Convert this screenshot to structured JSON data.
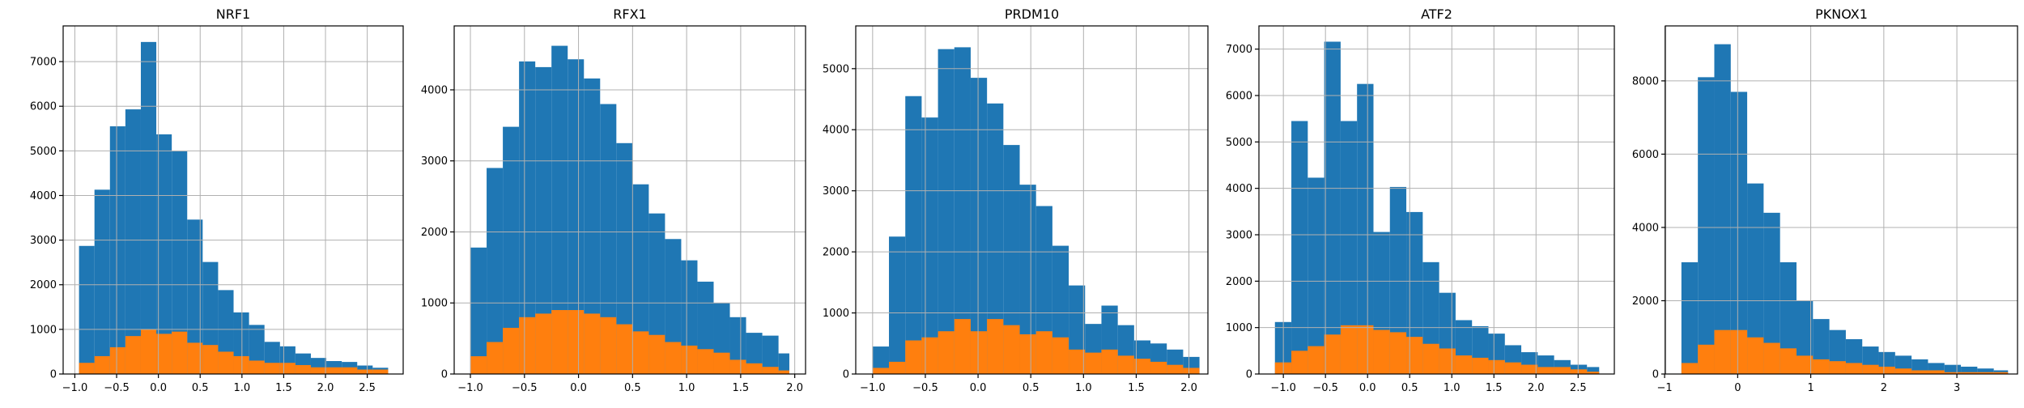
{
  "colors": {
    "series_a": "#1f77b4",
    "series_b": "#ff7f0e",
    "grid": "#b0b0b0"
  },
  "chart_data": [
    {
      "type": "bar",
      "title": "NRF1",
      "xlabel": "",
      "ylabel": "",
      "grid": true,
      "xlim": [
        -1.14,
        2.93
      ],
      "ylim": [
        0,
        7800
      ],
      "xticks": [
        -1.0,
        -0.5,
        0.0,
        0.5,
        1.0,
        1.5,
        2.0,
        2.5
      ],
      "xtick_labels": [
        "−1.0",
        "−0.5",
        "0.0",
        "0.5",
        "1.0",
        "1.5",
        "2.0",
        "2.5"
      ],
      "yticks": [
        0,
        1000,
        2000,
        3000,
        4000,
        5000,
        6000,
        7000
      ],
      "ytick_labels": [
        "0",
        "1000",
        "2000",
        "3000",
        "4000",
        "5000",
        "6000",
        "7000"
      ],
      "bin_edges": [
        -0.95,
        -0.765,
        -0.58,
        -0.395,
        -0.21,
        -0.025,
        0.16,
        0.345,
        0.53,
        0.715,
        0.9,
        1.085,
        1.27,
        1.455,
        1.64,
        1.825,
        2.01,
        2.195,
        2.38,
        2.565,
        2.75
      ],
      "series": [
        {
          "color": "#1f77b4",
          "values": [
            2870,
            4130,
            5550,
            5930,
            7440,
            5370,
            4990,
            3460,
            2510,
            1880,
            1380,
            1100,
            720,
            620,
            460,
            360,
            290,
            270,
            190,
            140
          ]
        },
        {
          "color": "#ff7f0e",
          "values": [
            250,
            400,
            600,
            850,
            1000,
            900,
            950,
            700,
            650,
            500,
            400,
            300,
            250,
            250,
            200,
            150,
            150,
            150,
            100,
            100
          ]
        }
      ]
    },
    {
      "type": "bar",
      "title": "RFX1",
      "xlabel": "",
      "ylabel": "",
      "grid": true,
      "xlim": [
        -1.15,
        2.1
      ],
      "ylim": [
        0,
        4900
      ],
      "xticks": [
        -1.0,
        -0.5,
        0.0,
        0.5,
        1.0,
        1.5,
        2.0
      ],
      "xtick_labels": [
        "−1.0",
        "−0.5",
        "0.0",
        "0.5",
        "1.0",
        "1.5",
        "2.0"
      ],
      "yticks": [
        0,
        1000,
        2000,
        3000,
        4000
      ],
      "ytick_labels": [
        "0",
        "1000",
        "2000",
        "3000",
        "4000"
      ],
      "bin_edges": [
        -1.0,
        -0.85,
        -0.7,
        -0.55,
        -0.4,
        -0.25,
        -0.1,
        0.05,
        0.2,
        0.35,
        0.5,
        0.65,
        0.8,
        0.95,
        1.1,
        1.25,
        1.4,
        1.55,
        1.7,
        1.85,
        1.95
      ],
      "series": [
        {
          "color": "#1f77b4",
          "values": [
            1780,
            2900,
            3480,
            4400,
            4320,
            4620,
            4430,
            4160,
            3800,
            3250,
            2670,
            2260,
            1900,
            1600,
            1300,
            1000,
            800,
            580,
            540,
            290
          ]
        },
        {
          "color": "#ff7f0e",
          "values": [
            250,
            450,
            650,
            800,
            850,
            900,
            900,
            850,
            800,
            700,
            600,
            550,
            450,
            400,
            350,
            300,
            200,
            150,
            100,
            50
          ]
        }
      ]
    },
    {
      "type": "bar",
      "title": "PRDM10",
      "xlabel": "",
      "ylabel": "",
      "grid": true,
      "xlim": [
        -1.16,
        2.18
      ],
      "ylim": [
        0,
        5700
      ],
      "xticks": [
        -1.0,
        -0.5,
        0.0,
        0.5,
        1.0,
        1.5,
        2.0
      ],
      "xtick_labels": [
        "−1.0",
        "−0.5",
        "0.0",
        "0.5",
        "1.0",
        "1.5",
        "2.0"
      ],
      "yticks": [
        0,
        1000,
        2000,
        3000,
        4000,
        5000
      ],
      "ytick_labels": [
        "0",
        "1000",
        "2000",
        "3000",
        "4000",
        "5000"
      ],
      "bin_edges": [
        -1.0,
        -0.845,
        -0.69,
        -0.535,
        -0.38,
        -0.225,
        -0.07,
        0.085,
        0.24,
        0.395,
        0.55,
        0.705,
        0.86,
        1.015,
        1.17,
        1.325,
        1.48,
        1.635,
        1.79,
        1.945,
        2.1
      ],
      "series": [
        {
          "color": "#1f77b4",
          "values": [
            450,
            2250,
            4550,
            4200,
            5320,
            5350,
            4850,
            4430,
            3750,
            3100,
            2750,
            2100,
            1450,
            820,
            1120,
            800,
            550,
            500,
            400,
            280
          ]
        },
        {
          "color": "#ff7f0e",
          "values": [
            100,
            200,
            550,
            600,
            700,
            900,
            700,
            900,
            800,
            650,
            700,
            600,
            400,
            350,
            400,
            300,
            250,
            200,
            150,
            100
          ]
        }
      ]
    },
    {
      "type": "bar",
      "title": "ATF2",
      "xlabel": "",
      "ylabel": "",
      "grid": true,
      "xlim": [
        -1.29,
        2.93
      ],
      "ylim": [
        0,
        7500
      ],
      "xticks": [
        -1.0,
        -0.5,
        0.0,
        0.5,
        1.0,
        1.5,
        2.0,
        2.5
      ],
      "xtick_labels": [
        "−1.0",
        "−0.5",
        "0.0",
        "0.5",
        "1.0",
        "1.5",
        "2.0",
        "2.5"
      ],
      "yticks": [
        0,
        1000,
        2000,
        3000,
        4000,
        5000,
        6000,
        7000
      ],
      "ytick_labels": [
        "0",
        "1000",
        "2000",
        "3000",
        "4000",
        "5000",
        "6000",
        "7000"
      ],
      "bin_edges": [
        -1.1,
        -0.905,
        -0.71,
        -0.515,
        -0.32,
        -0.125,
        0.07,
        0.265,
        0.46,
        0.655,
        0.85,
        1.045,
        1.24,
        1.435,
        1.63,
        1.825,
        2.02,
        2.215,
        2.41,
        2.605,
        2.75
      ],
      "series": [
        {
          "color": "#1f77b4",
          "values": [
            1120,
            5450,
            4230,
            7160,
            5450,
            6250,
            3060,
            4030,
            3490,
            2410,
            1750,
            1160,
            1030,
            870,
            620,
            470,
            400,
            300,
            200,
            150
          ]
        },
        {
          "color": "#ff7f0e",
          "values": [
            250,
            500,
            600,
            850,
            1050,
            1050,
            950,
            900,
            800,
            650,
            550,
            400,
            350,
            300,
            250,
            200,
            150,
            150,
            100,
            50
          ]
        }
      ]
    },
    {
      "type": "bar",
      "title": "PKNOX1",
      "xlabel": "",
      "ylabel": "",
      "grid": true,
      "xlim": [
        -0.99,
        3.83
      ],
      "ylim": [
        0,
        9500
      ],
      "xticks": [
        -1,
        0,
        1,
        2,
        3
      ],
      "xtick_labels": [
        "−1",
        "0",
        "1",
        "2",
        "3"
      ],
      "yticks": [
        0,
        2000,
        4000,
        6000,
        8000
      ],
      "ytick_labels": [
        "0",
        "2000",
        "4000",
        "6000",
        "8000"
      ],
      "bin_edges": [
        -0.77,
        -0.545,
        -0.32,
        -0.095,
        0.13,
        0.355,
        0.58,
        0.805,
        1.03,
        1.255,
        1.48,
        1.705,
        1.93,
        2.155,
        2.38,
        2.605,
        2.83,
        3.055,
        3.28,
        3.505,
        3.7
      ],
      "series": [
        {
          "color": "#1f77b4",
          "values": [
            3050,
            8100,
            9000,
            7700,
            5200,
            4400,
            3050,
            2000,
            1500,
            1200,
            950,
            750,
            600,
            500,
            400,
            300,
            250,
            200,
            150,
            100
          ]
        },
        {
          "color": "#ff7f0e",
          "values": [
            300,
            800,
            1200,
            1200,
            1000,
            850,
            700,
            500,
            400,
            350,
            300,
            250,
            200,
            150,
            100,
            100,
            50,
            50,
            50,
            50
          ]
        }
      ]
    }
  ]
}
